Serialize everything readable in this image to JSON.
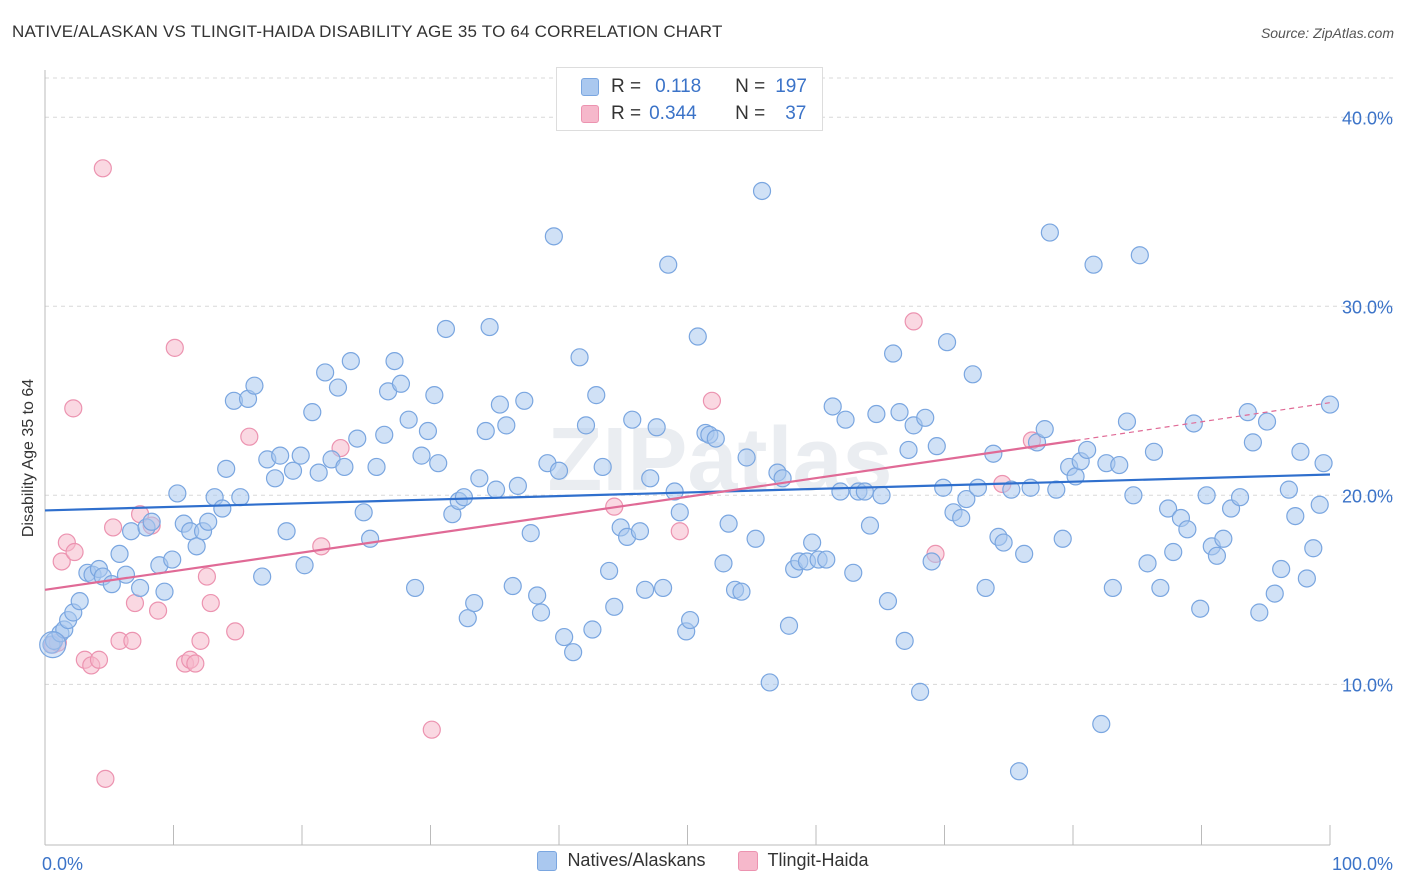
{
  "title": "NATIVE/ALASKAN VS TLINGIT-HAIDA DISABILITY AGE 35 TO 64 CORRELATION CHART",
  "source": "Source: ZipAtlas.com",
  "watermark": "ZIPatlas",
  "legend": {
    "r_label": "R =",
    "n_label": "N =",
    "rows": [
      {
        "r": "0.118",
        "n": "197"
      },
      {
        "r": "0.344",
        "n": "37"
      }
    ]
  },
  "colors": {
    "blue_fill": "#aac8ef",
    "blue_stroke": "#7aa6e0",
    "blue_line": "#2f6fcd",
    "pink_fill": "#f6b8cb",
    "pink_stroke": "#ec93b0",
    "pink_line": "#e06a96",
    "tick_text": "#3b73c8",
    "grid": "#d8d8d8"
  },
  "chart_data": {
    "type": "scatter",
    "title": "NATIVE/ALASKAN VS TLINGIT-HAIDA DISABILITY AGE 35 TO 64 CORRELATION CHART",
    "xlabel": "",
    "ylabel": "Disability Age 35 to 64",
    "xlim": [
      0,
      100
    ],
    "ylim": [
      1.5,
      42.5
    ],
    "x_tick_labels": [
      "0.0%",
      "100.0%"
    ],
    "y_ticks": [
      10,
      20,
      30,
      40
    ],
    "y_tick_labels": [
      "10.0%",
      "20.0%",
      "30.0%",
      "40.0%"
    ],
    "grid": true,
    "legend_position": "top-center",
    "series": [
      {
        "name": "Natives/Alaskans",
        "r": 0.118,
        "n": 197,
        "trend": {
          "x": [
            0,
            100
          ],
          "y": [
            19.2,
            21.1
          ]
        },
        "points": [
          [
            0.5,
            12.1
          ],
          [
            0.7,
            12.3
          ],
          [
            1.2,
            12.7
          ],
          [
            1.5,
            12.9
          ],
          [
            1.8,
            13.4
          ],
          [
            2.2,
            13.8
          ],
          [
            2.7,
            14.4
          ],
          [
            3.3,
            15.9
          ],
          [
            3.7,
            15.8
          ],
          [
            4.2,
            16.1
          ],
          [
            4.5,
            15.7
          ],
          [
            5.2,
            15.3
          ],
          [
            5.8,
            16.9
          ],
          [
            6.3,
            15.8
          ],
          [
            6.7,
            18.1
          ],
          [
            7.4,
            15.1
          ],
          [
            7.9,
            18.3
          ],
          [
            8.3,
            18.6
          ],
          [
            8.9,
            16.3
          ],
          [
            9.3,
            14.9
          ],
          [
            9.9,
            16.6
          ],
          [
            10.3,
            20.1
          ],
          [
            10.8,
            18.5
          ],
          [
            11.3,
            18.1
          ],
          [
            11.8,
            17.3
          ],
          [
            12.3,
            18.1
          ],
          [
            12.7,
            18.6
          ],
          [
            13.2,
            19.9
          ],
          [
            13.8,
            19.3
          ],
          [
            14.1,
            21.4
          ],
          [
            14.7,
            25.0
          ],
          [
            15.2,
            19.9
          ],
          [
            15.8,
            25.1
          ],
          [
            16.3,
            25.8
          ],
          [
            16.9,
            15.7
          ],
          [
            17.3,
            21.9
          ],
          [
            17.9,
            20.9
          ],
          [
            18.3,
            22.1
          ],
          [
            18.8,
            18.1
          ],
          [
            19.3,
            21.3
          ],
          [
            19.9,
            22.1
          ],
          [
            20.2,
            16.3
          ],
          [
            20.8,
            24.4
          ],
          [
            21.3,
            21.2
          ],
          [
            21.8,
            26.5
          ],
          [
            22.3,
            21.9
          ],
          [
            22.8,
            25.7
          ],
          [
            23.3,
            21.5
          ],
          [
            23.8,
            27.1
          ],
          [
            24.3,
            23.0
          ],
          [
            24.8,
            19.1
          ],
          [
            25.3,
            17.7
          ],
          [
            25.8,
            21.5
          ],
          [
            26.4,
            23.2
          ],
          [
            26.7,
            25.5
          ],
          [
            27.2,
            27.1
          ],
          [
            27.7,
            25.9
          ],
          [
            28.3,
            24.0
          ],
          [
            28.8,
            15.1
          ],
          [
            29.3,
            22.1
          ],
          [
            29.8,
            23.4
          ],
          [
            30.3,
            25.3
          ],
          [
            30.6,
            21.7
          ],
          [
            31.2,
            28.8
          ],
          [
            31.7,
            19.0
          ],
          [
            32.2,
            19.7
          ],
          [
            32.6,
            19.9
          ],
          [
            32.9,
            13.5
          ],
          [
            33.4,
            14.3
          ],
          [
            33.8,
            20.9
          ],
          [
            34.3,
            23.4
          ],
          [
            34.6,
            28.9
          ],
          [
            35.1,
            20.3
          ],
          [
            35.4,
            24.8
          ],
          [
            35.9,
            23.7
          ],
          [
            36.4,
            15.2
          ],
          [
            36.8,
            20.5
          ],
          [
            37.3,
            25.0
          ],
          [
            37.8,
            18.0
          ],
          [
            38.3,
            14.7
          ],
          [
            38.6,
            13.8
          ],
          [
            39.1,
            21.7
          ],
          [
            39.6,
            33.7
          ],
          [
            40.0,
            21.3
          ],
          [
            40.4,
            12.5
          ],
          [
            41.1,
            11.7
          ],
          [
            41.6,
            27.3
          ],
          [
            42.1,
            23.7
          ],
          [
            42.6,
            12.9
          ],
          [
            42.9,
            25.3
          ],
          [
            43.4,
            21.5
          ],
          [
            43.9,
            16.0
          ],
          [
            44.3,
            14.1
          ],
          [
            44.8,
            18.3
          ],
          [
            45.3,
            17.8
          ],
          [
            45.7,
            24.0
          ],
          [
            46.3,
            18.1
          ],
          [
            46.7,
            15.0
          ],
          [
            47.1,
            20.9
          ],
          [
            47.6,
            23.6
          ],
          [
            48.1,
            15.1
          ],
          [
            48.5,
            32.2
          ],
          [
            49.0,
            20.2
          ],
          [
            49.4,
            19.1
          ],
          [
            49.9,
            12.8
          ],
          [
            50.2,
            13.4
          ],
          [
            50.8,
            28.4
          ],
          [
            51.4,
            23.3
          ],
          [
            51.7,
            23.2
          ],
          [
            52.2,
            23.0
          ],
          [
            52.8,
            16.4
          ],
          [
            53.2,
            18.5
          ],
          [
            53.7,
            15.0
          ],
          [
            54.2,
            14.9
          ],
          [
            54.6,
            22.0
          ],
          [
            55.3,
            17.7
          ],
          [
            55.8,
            36.1
          ],
          [
            56.4,
            10.1
          ],
          [
            57.0,
            21.2
          ],
          [
            57.4,
            20.9
          ],
          [
            57.9,
            13.1
          ],
          [
            58.3,
            16.1
          ],
          [
            58.7,
            16.5
          ],
          [
            59.3,
            16.5
          ],
          [
            59.7,
            17.5
          ],
          [
            60.2,
            16.6
          ],
          [
            60.8,
            16.6
          ],
          [
            61.3,
            24.7
          ],
          [
            61.9,
            20.2
          ],
          [
            62.3,
            24.0
          ],
          [
            62.9,
            15.9
          ],
          [
            63.3,
            20.2
          ],
          [
            63.8,
            20.2
          ],
          [
            64.2,
            18.4
          ],
          [
            64.7,
            24.3
          ],
          [
            65.1,
            20.0
          ],
          [
            65.6,
            14.4
          ],
          [
            66.0,
            27.5
          ],
          [
            66.5,
            24.4
          ],
          [
            66.9,
            12.3
          ],
          [
            67.2,
            22.4
          ],
          [
            67.6,
            23.7
          ],
          [
            68.1,
            9.6
          ],
          [
            68.5,
            24.1
          ],
          [
            69.0,
            16.5
          ],
          [
            69.4,
            22.6
          ],
          [
            69.9,
            20.4
          ],
          [
            70.2,
            28.1
          ],
          [
            70.7,
            19.1
          ],
          [
            71.3,
            18.8
          ],
          [
            71.7,
            19.8
          ],
          [
            72.2,
            26.4
          ],
          [
            72.6,
            20.4
          ],
          [
            73.2,
            15.1
          ],
          [
            73.8,
            22.2
          ],
          [
            74.2,
            17.8
          ],
          [
            74.6,
            17.5
          ],
          [
            75.2,
            20.3
          ],
          [
            75.8,
            5.4
          ],
          [
            76.2,
            16.9
          ],
          [
            76.7,
            20.4
          ],
          [
            77.2,
            22.8
          ],
          [
            77.8,
            23.5
          ],
          [
            78.2,
            33.9
          ],
          [
            78.7,
            20.3
          ],
          [
            79.2,
            17.7
          ],
          [
            79.7,
            21.5
          ],
          [
            80.2,
            21.0
          ],
          [
            80.6,
            21.8
          ],
          [
            81.1,
            22.4
          ],
          [
            81.6,
            32.2
          ],
          [
            82.2,
            7.9
          ],
          [
            82.6,
            21.7
          ],
          [
            83.1,
            15.1
          ],
          [
            83.6,
            21.6
          ],
          [
            84.2,
            23.9
          ],
          [
            84.7,
            20.0
          ],
          [
            85.2,
            32.7
          ],
          [
            85.8,
            16.4
          ],
          [
            86.3,
            22.3
          ],
          [
            86.8,
            15.1
          ],
          [
            87.4,
            19.3
          ],
          [
            87.8,
            17.0
          ],
          [
            88.4,
            18.8
          ],
          [
            88.9,
            18.2
          ],
          [
            89.4,
            23.8
          ],
          [
            89.9,
            14.0
          ],
          [
            90.4,
            20.0
          ],
          [
            90.8,
            17.3
          ],
          [
            91.2,
            16.8
          ],
          [
            91.7,
            17.7
          ],
          [
            92.3,
            19.3
          ],
          [
            93.0,
            19.9
          ],
          [
            93.6,
            24.4
          ],
          [
            94.0,
            22.8
          ],
          [
            94.5,
            13.8
          ],
          [
            95.1,
            23.9
          ],
          [
            95.7,
            14.8
          ],
          [
            96.2,
            16.1
          ],
          [
            96.8,
            20.3
          ],
          [
            97.3,
            18.9
          ],
          [
            97.7,
            22.3
          ],
          [
            98.2,
            15.6
          ],
          [
            98.7,
            17.2
          ],
          [
            99.2,
            19.5
          ],
          [
            99.5,
            21.7
          ],
          [
            100.0,
            24.8
          ]
        ]
      },
      {
        "name": "Tlingit-Haida",
        "r": 0.344,
        "n": 37,
        "trend": {
          "x": [
            0,
            80.2
          ],
          "y": [
            15.0,
            22.9
          ]
        },
        "trend_dashed": {
          "x": [
            80.2,
            100
          ],
          "y": [
            22.9,
            24.9
          ]
        },
        "points": [
          [
            0.6,
            12.1
          ],
          [
            1.0,
            12.2
          ],
          [
            1.3,
            16.5
          ],
          [
            1.7,
            17.5
          ],
          [
            2.3,
            17.0
          ],
          [
            2.2,
            24.6
          ],
          [
            3.1,
            11.3
          ],
          [
            3.6,
            11.0
          ],
          [
            4.2,
            11.3
          ],
          [
            4.5,
            37.3
          ],
          [
            4.7,
            5.0
          ],
          [
            5.3,
            18.3
          ],
          [
            5.8,
            12.3
          ],
          [
            6.8,
            12.3
          ],
          [
            7.0,
            14.3
          ],
          [
            7.4,
            19.0
          ],
          [
            8.3,
            18.4
          ],
          [
            8.8,
            13.9
          ],
          [
            10.1,
            27.8
          ],
          [
            10.9,
            11.1
          ],
          [
            11.3,
            11.3
          ],
          [
            11.7,
            11.1
          ],
          [
            12.1,
            12.3
          ],
          [
            12.6,
            15.7
          ],
          [
            12.9,
            14.3
          ],
          [
            14.8,
            12.8
          ],
          [
            15.9,
            23.1
          ],
          [
            21.5,
            17.3
          ],
          [
            23.0,
            22.5
          ],
          [
            30.1,
            7.6
          ],
          [
            44.3,
            19.4
          ],
          [
            49.4,
            18.1
          ],
          [
            51.9,
            25.0
          ],
          [
            69.3,
            16.9
          ],
          [
            67.6,
            29.2
          ],
          [
            74.5,
            20.6
          ],
          [
            76.8,
            22.9
          ]
        ]
      }
    ]
  },
  "bottom_legend": [
    "Natives/Alaskans",
    "Tlingit-Haida"
  ]
}
